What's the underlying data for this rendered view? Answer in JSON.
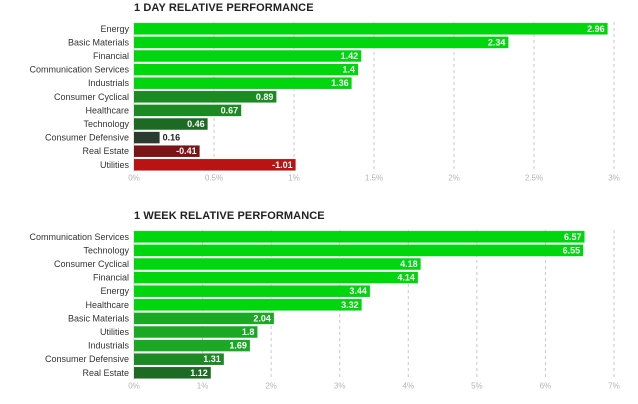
{
  "chart_data": [
    {
      "type": "bar",
      "orientation": "horizontal",
      "title": "1 DAY RELATIVE PERFORMANCE",
      "categories": [
        "Energy",
        "Basic Materials",
        "Financial",
        "Communication Services",
        "Industrials",
        "Consumer Cyclical",
        "Healthcare",
        "Technology",
        "Consumer Defensive",
        "Real Estate",
        "Utilities"
      ],
      "values": [
        2.96,
        2.34,
        1.42,
        1.4,
        1.36,
        0.89,
        0.67,
        0.46,
        0.16,
        -0.41,
        -1.01
      ],
      "value_labels": [
        "2.96",
        "2.34",
        "1.42",
        "1.4",
        "1.36",
        "0.89",
        "0.67",
        "0.46",
        "0.16",
        "-0.41",
        "-1.01"
      ],
      "bar_colors": [
        "#00d60e",
        "#00d60e",
        "#00d60e",
        "#00d60e",
        "#00d60e",
        "#1b8a22",
        "#1b8a22",
        "#1e6a24",
        "#2b3b2d",
        "#7a1416",
        "#b81414"
      ],
      "xlim": [
        0,
        3
      ],
      "xticks": [
        "0%",
        "0.5%",
        "1%",
        "1.5%",
        "2%",
        "2.5%",
        "3%"
      ],
      "grid": true,
      "legend": "none"
    },
    {
      "type": "bar",
      "orientation": "horizontal",
      "title": "1 WEEK RELATIVE PERFORMANCE",
      "categories": [
        "Communication Services",
        "Technology",
        "Consumer Cyclical",
        "Financial",
        "Energy",
        "Healthcare",
        "Basic Materials",
        "Utilities",
        "Industrials",
        "Consumer Defensive",
        "Real Estate"
      ],
      "values": [
        6.57,
        6.55,
        4.18,
        4.14,
        3.44,
        3.32,
        2.04,
        1.8,
        1.69,
        1.31,
        1.12
      ],
      "value_labels": [
        "6.57",
        "6.55",
        "4.18",
        "4.14",
        "3.44",
        "3.32",
        "2.04",
        "1.8",
        "1.69",
        "1.31",
        "1.12"
      ],
      "bar_colors": [
        "#00d60e",
        "#00d60e",
        "#00d60e",
        "#00d60e",
        "#00d60e",
        "#00d60e",
        "#1aa825",
        "#1aa825",
        "#1aa825",
        "#1b8a22",
        "#1e6a24"
      ],
      "xlim": [
        0,
        7
      ],
      "xticks": [
        "0%",
        "1%",
        "2%",
        "3%",
        "4%",
        "5%",
        "6%",
        "7%"
      ],
      "grid": true,
      "legend": "none"
    }
  ]
}
